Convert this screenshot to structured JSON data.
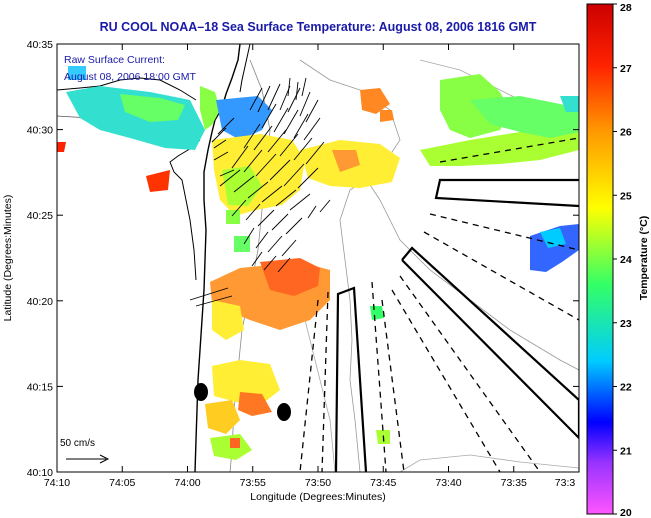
{
  "map": {
    "title": "RU COOL  NOAA–18  Sea Surface Temperature:  August 08, 2006 1816 GMT",
    "subtitle_line1": "Raw Surface Current:",
    "subtitle_line2": "August 08, 2006 18:00 GMT",
    "x_axis_label": "Longitude (Degrees:Minutes)",
    "y_axis_label": "Latitude (Degrees:Minutes)",
    "scale_label": "50 cm/s",
    "colorbar_label": "Temperature (°C)"
  },
  "chart_data": {
    "type": "heatmap",
    "title": "RU COOL  NOAA–18  Sea Surface Temperature:  August 08, 2006 1816 GMT",
    "xlabel": "Longitude (Degrees:Minutes)",
    "ylabel": "Latitude (Degrees:Minutes)",
    "x_ticks": [
      "74:10",
      "74:05",
      "74:00",
      "73:55",
      "73:50",
      "73:45",
      "73:40",
      "73:35",
      "73:3"
    ],
    "y_ticks": [
      "40:35",
      "40:30",
      "40:25",
      "40:20",
      "40:15",
      "40:10"
    ],
    "colorbar": {
      "label": "Temperature (°C)",
      "range": [
        20,
        28
      ],
      "ticks": [
        "20",
        "21",
        "22",
        "23",
        "24",
        "25",
        "26",
        "27",
        "28"
      ]
    },
    "colors": {
      "title": "#1a1aa8",
      "land": "#ffffff",
      "colormap": [
        "#ff55ff",
        "#9933ff",
        "#0000ff",
        "#00ccff",
        "#33ff66",
        "#ffff00",
        "#ff9900",
        "#ff2200",
        "#cc0000"
      ]
    }
  }
}
